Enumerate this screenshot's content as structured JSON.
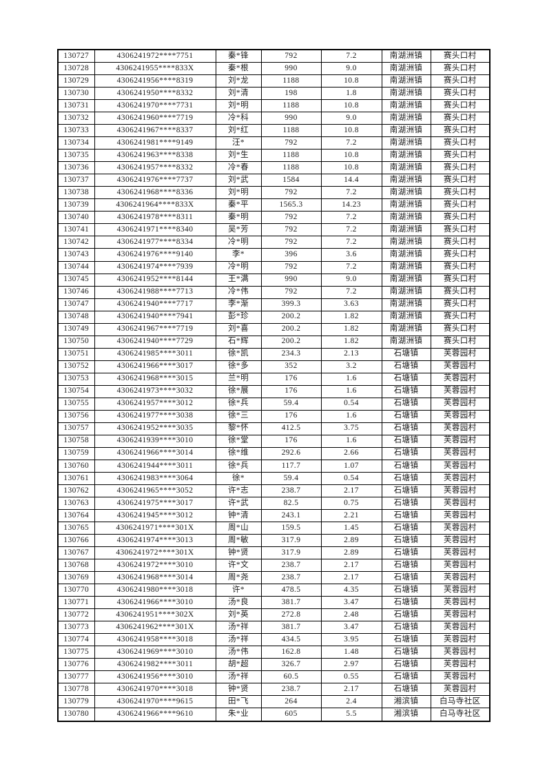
{
  "colors": {
    "page_background": "#ffffff",
    "grid_line": "#000000",
    "text": "#1a1a1a"
  },
  "table": {
    "column_keys": [
      "serial-no",
      "id-number",
      "name",
      "amount",
      "rate",
      "town",
      "village"
    ],
    "rows": [
      [
        "130727",
        "4306241972****7751",
        "秦*锋",
        "792",
        "7.2",
        "南湖洲镇",
        "赛头口村"
      ],
      [
        "130728",
        "4306241955****833X",
        "秦*根",
        "990",
        "9.0",
        "南湖洲镇",
        "赛头口村"
      ],
      [
        "130729",
        "4306241956****8319",
        "刘*龙",
        "1188",
        "10.8",
        "南湖洲镇",
        "赛头口村"
      ],
      [
        "130730",
        "4306241950****8332",
        "刘*清",
        "198",
        "1.8",
        "南湖洲镇",
        "赛头口村"
      ],
      [
        "130731",
        "4306241970****7731",
        "刘*明",
        "1188",
        "10.8",
        "南湖洲镇",
        "赛头口村"
      ],
      [
        "130732",
        "4306241960****7719",
        "冷*科",
        "990",
        "9.0",
        "南湖洲镇",
        "赛头口村"
      ],
      [
        "130733",
        "4306241967****8337",
        "刘*红",
        "1188",
        "10.8",
        "南湖洲镇",
        "赛头口村"
      ],
      [
        "130734",
        "4306241981****9149",
        "汪*",
        "792",
        "7.2",
        "南湖洲镇",
        "赛头口村"
      ],
      [
        "130735",
        "4306241963****8338",
        "刘*生",
        "1188",
        "10.8",
        "南湖洲镇",
        "赛头口村"
      ],
      [
        "130736",
        "4306241957****8332",
        "冷*春",
        "1188",
        "10.8",
        "南湖洲镇",
        "赛头口村"
      ],
      [
        "130737",
        "4306241976****7737",
        "刘*武",
        "1584",
        "14.4",
        "南湖洲镇",
        "赛头口村"
      ],
      [
        "130738",
        "4306241968****8336",
        "刘*明",
        "792",
        "7.2",
        "南湖洲镇",
        "赛头口村"
      ],
      [
        "130739",
        "4306241964****833X",
        "秦*平",
        "1565.3",
        "14.23",
        "南湖洲镇",
        "赛头口村"
      ],
      [
        "130740",
        "4306241978****8311",
        "秦*明",
        "792",
        "7.2",
        "南湖洲镇",
        "赛头口村"
      ],
      [
        "130741",
        "4306241971****8340",
        "吴*芳",
        "792",
        "7.2",
        "南湖洲镇",
        "赛头口村"
      ],
      [
        "130742",
        "4306241977****8334",
        "冷*明",
        "792",
        "7.2",
        "南湖洲镇",
        "赛头口村"
      ],
      [
        "130743",
        "4306241976****9140",
        "李*",
        "396",
        "3.6",
        "南湖洲镇",
        "赛头口村"
      ],
      [
        "130744",
        "4306241974****7939",
        "冷*明",
        "792",
        "7.2",
        "南湖洲镇",
        "赛头口村"
      ],
      [
        "130745",
        "4306241952****8144",
        "王*满",
        "990",
        "9.0",
        "南湖洲镇",
        "赛头口村"
      ],
      [
        "130746",
        "4306241988****7713",
        "冷*伟",
        "792",
        "7.2",
        "南湖洲镇",
        "赛头口村"
      ],
      [
        "130747",
        "4306241940****7717",
        "李*渐",
        "399.3",
        "3.63",
        "南湖洲镇",
        "赛头口村"
      ],
      [
        "130748",
        "4306241940****7941",
        "彭*珍",
        "200.2",
        "1.82",
        "南湖洲镇",
        "赛头口村"
      ],
      [
        "130749",
        "4306241967****7719",
        "刘*喜",
        "200.2",
        "1.82",
        "南湖洲镇",
        "赛头口村"
      ],
      [
        "130750",
        "4306241940****7729",
        "石*辉",
        "200.2",
        "1.82",
        "南湖洲镇",
        "赛头口村"
      ],
      [
        "130751",
        "4306241985****3011",
        "徐*凯",
        "234.3",
        "2.13",
        "石塘镇",
        "芙蓉园村"
      ],
      [
        "130752",
        "4306241966****3017",
        "徐*多",
        "352",
        "3.2",
        "石塘镇",
        "芙蓉园村"
      ],
      [
        "130753",
        "4306241968****3015",
        "兰*明",
        "176",
        "1.6",
        "石塘镇",
        "芙蓉园村"
      ],
      [
        "130754",
        "4306241973****3032",
        "徐*展",
        "176",
        "1.6",
        "石塘镇",
        "芙蓉园村"
      ],
      [
        "130755",
        "4306241957****3012",
        "徐*兵",
        "59.4",
        "0.54",
        "石塘镇",
        "芙蓉园村"
      ],
      [
        "130756",
        "4306241977****3038",
        "徐*三",
        "176",
        "1.6",
        "石塘镇",
        "芙蓉园村"
      ],
      [
        "130757",
        "4306241952****3035",
        "黎*怀",
        "412.5",
        "3.75",
        "石塘镇",
        "芙蓉园村"
      ],
      [
        "130758",
        "4306241939****3010",
        "徐*堂",
        "176",
        "1.6",
        "石塘镇",
        "芙蓉园村"
      ],
      [
        "130759",
        "4306241966****3014",
        "徐*维",
        "292.6",
        "2.66",
        "石塘镇",
        "芙蓉园村"
      ],
      [
        "130760",
        "4306241944****3011",
        "徐*兵",
        "117.7",
        "1.07",
        "石塘镇",
        "芙蓉园村"
      ],
      [
        "130761",
        "4306241983****3064",
        "徐*",
        "59.4",
        "0.54",
        "石塘镇",
        "芙蓉园村"
      ],
      [
        "130762",
        "4306241965****3052",
        "许*志",
        "238.7",
        "2.17",
        "石塘镇",
        "芙蓉园村"
      ],
      [
        "130763",
        "4306241975****3017",
        "许*武",
        "82.5",
        "0.75",
        "石塘镇",
        "芙蓉园村"
      ],
      [
        "130764",
        "4306241945****3012",
        "钟*清",
        "243.1",
        "2.21",
        "石塘镇",
        "芙蓉园村"
      ],
      [
        "130765",
        "4306241971****301X",
        "周*山",
        "159.5",
        "1.45",
        "石塘镇",
        "芙蓉园村"
      ],
      [
        "130766",
        "4306241974****3013",
        "周*敏",
        "317.9",
        "2.89",
        "石塘镇",
        "芙蓉园村"
      ],
      [
        "130767",
        "4306241972****301X",
        "钟*贤",
        "317.9",
        "2.89",
        "石塘镇",
        "芙蓉园村"
      ],
      [
        "130768",
        "4306241972****3010",
        "许*文",
        "238.7",
        "2.17",
        "石塘镇",
        "芙蓉园村"
      ],
      [
        "130769",
        "4306241968****3014",
        "周*尧",
        "238.7",
        "2.17",
        "石塘镇",
        "芙蓉园村"
      ],
      [
        "130770",
        "4306241980****3018",
        "许*",
        "478.5",
        "4.35",
        "石塘镇",
        "芙蓉园村"
      ],
      [
        "130771",
        "4306241966****3010",
        "汤*良",
        "381.7",
        "3.47",
        "石塘镇",
        "芙蓉园村"
      ],
      [
        "130772",
        "4306241951****302X",
        "刘*英",
        "272.8",
        "2.48",
        "石塘镇",
        "芙蓉园村"
      ],
      [
        "130773",
        "4306241962****301X",
        "汤*祥",
        "381.7",
        "3.47",
        "石塘镇",
        "芙蓉园村"
      ],
      [
        "130774",
        "4306241958****3018",
        "汤*祥",
        "434.5",
        "3.95",
        "石塘镇",
        "芙蓉园村"
      ],
      [
        "130775",
        "4306241969****3010",
        "汤*伟",
        "162.8",
        "1.48",
        "石塘镇",
        "芙蓉园村"
      ],
      [
        "130776",
        "4306241982****3011",
        "胡*超",
        "326.7",
        "2.97",
        "石塘镇",
        "芙蓉园村"
      ],
      [
        "130777",
        "4306241956****3010",
        "汤*祥",
        "60.5",
        "0.55",
        "石塘镇",
        "芙蓉园村"
      ],
      [
        "130778",
        "4306241970****3018",
        "钟*贤",
        "238.7",
        "2.17",
        "石塘镇",
        "芙蓉园村"
      ],
      [
        "130779",
        "4306241970****9615",
        "田*飞",
        "264",
        "2.4",
        "湘滨镇",
        "白马寺社区"
      ],
      [
        "130780",
        "4306241966****9610",
        "朱*业",
        "605",
        "5.5",
        "湘滨镇",
        "白马寺社区"
      ]
    ]
  }
}
